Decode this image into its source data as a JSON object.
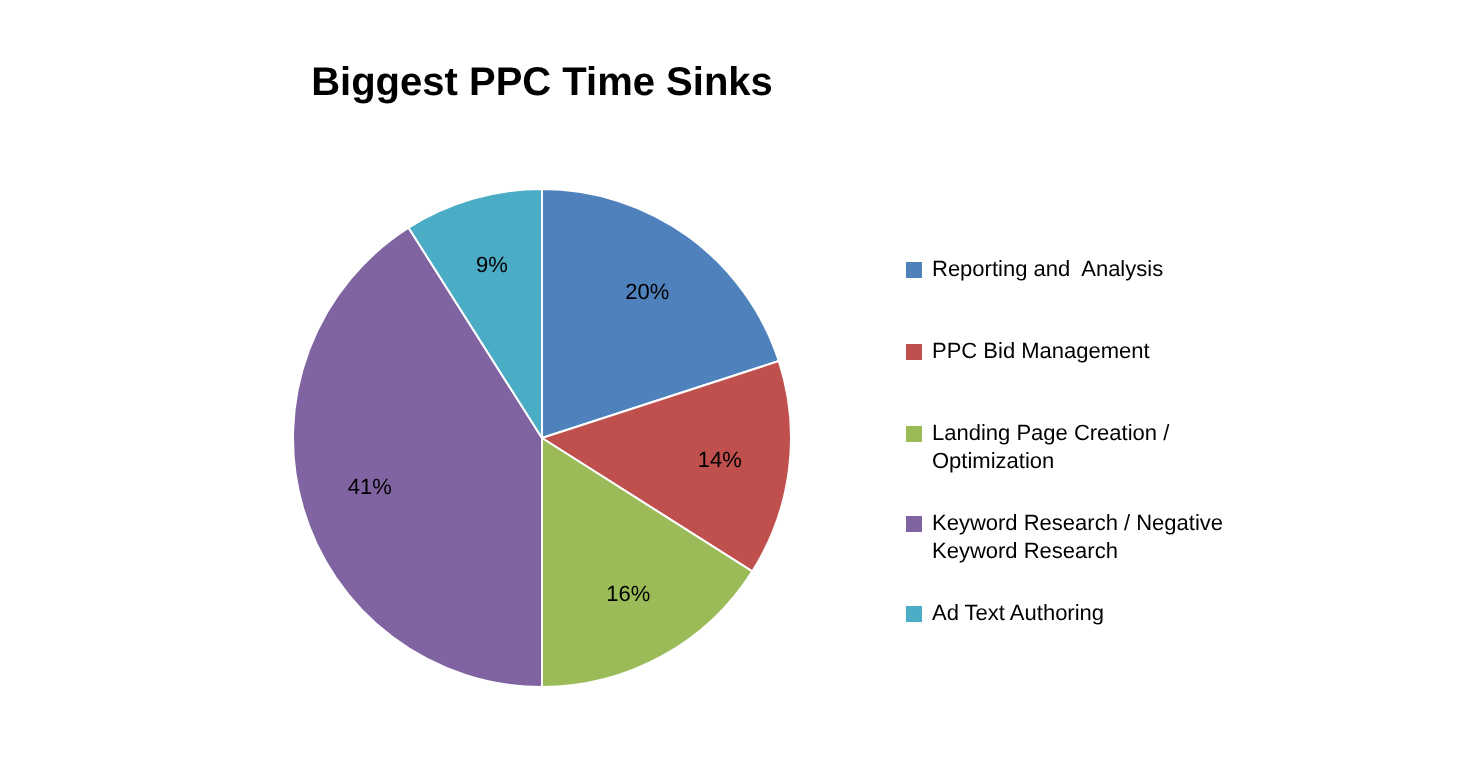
{
  "chart_data": {
    "type": "pie",
    "title": "Biggest PPC Time Sinks",
    "categories": [
      "Reporting and  Analysis",
      "PPC Bid Management",
      "Landing Page Creation / Optimization",
      "Keyword Research / Negative Keyword Research",
      "Ad Text Authoring"
    ],
    "values": [
      20,
      14,
      16,
      41,
      9
    ],
    "value_labels": [
      "20%",
      "14%",
      "16%",
      "41%",
      "9%"
    ],
    "colors": [
      "#4f81bd",
      "#c0504d",
      "#9bbb59",
      "#8064a2",
      "#4bacc6"
    ],
    "legend": "right"
  }
}
